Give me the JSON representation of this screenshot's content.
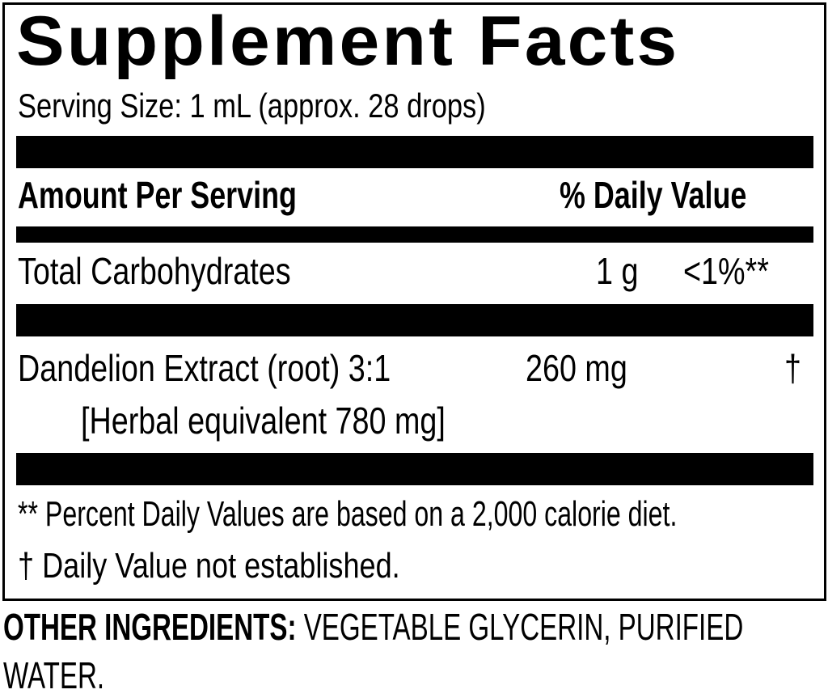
{
  "title": "Supplement Facts",
  "serving_size": "Serving Size: 1 mL (approx. 28 drops)",
  "header": {
    "amount": "Amount Per Serving",
    "daily_value": "% Daily Value"
  },
  "rows": [
    {
      "name": "Total Carbohydrates",
      "amount": "1 g",
      "dv": "<1%**"
    },
    {
      "name": "Dandelion Extract (root) 3:1",
      "amount": "260 mg",
      "dv": "†",
      "sub": "[Herbal equivalent 780 mg]"
    }
  ],
  "footnotes": [
    "** Percent Daily Values are based on a 2,000 calorie diet.",
    "† Daily Value not established."
  ],
  "other_ingredients": {
    "label": "OTHER INGREDIENTS:",
    "line1": "VEGETABLE GLYCERIN, PURIFIED",
    "line2": "WATER."
  }
}
